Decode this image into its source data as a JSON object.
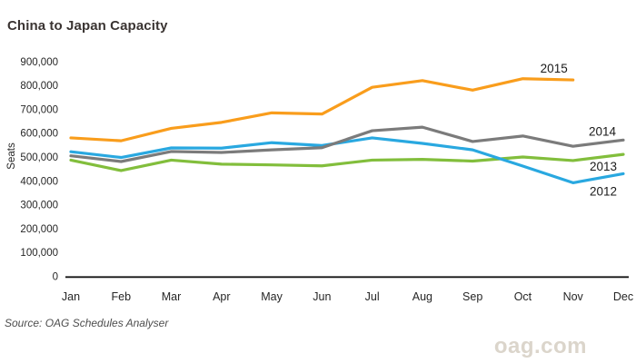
{
  "page": {
    "title": "China to Japan Capacity",
    "source_note": "Source: OAG Schedules Analyser",
    "watermark": "oag.com"
  },
  "colors": {
    "title_text": "#3A3432",
    "axis_text": "#262626",
    "axis_line": "#141414",
    "series_label_text": "#1A1A1A",
    "source_text": "#4D4D4D",
    "watermark_text": "#DBD5CB",
    "background": "#FFFFFF"
  },
  "chart_data": {
    "type": "line",
    "title": "China to Japan Capacity",
    "xlabel": "",
    "ylabel": "Seats",
    "categories": [
      "Jan",
      "Feb",
      "Mar",
      "Apr",
      "May",
      "Jun",
      "Jul",
      "Aug",
      "Sep",
      "Oct",
      "Nov",
      "Dec"
    ],
    "ylim": [
      0,
      900000
    ],
    "ytick_step": 100000,
    "grid": false,
    "legend_position": "end-of-line-labels",
    "series": [
      {
        "name": "2012",
        "color": "#29A8E0",
        "z": 2,
        "label_offset": {
          "dx": -22,
          "dy": 24
        },
        "values": [
          522000,
          498000,
          538000,
          537000,
          560000,
          548000,
          580000,
          557000,
          530000,
          462000,
          392000,
          430000
        ]
      },
      {
        "name": "2013",
        "color": "#82BE3C",
        "z": 1,
        "label_offset": {
          "dx": -22,
          "dy": 18
        },
        "values": [
          487000,
          443000,
          487000,
          470000,
          467000,
          463000,
          487000,
          490000,
          483000,
          500000,
          485000,
          511000
        ]
      },
      {
        "name": "2014",
        "color": "#7B7B7B",
        "z": 3,
        "label_offset": {
          "dx": -23,
          "dy": -5
        },
        "values": [
          505000,
          481000,
          523000,
          519000,
          530000,
          539000,
          610000,
          625000,
          565000,
          588000,
          545000,
          571000
        ]
      },
      {
        "name": "2015",
        "color": "#F99D1C",
        "z": 4,
        "label_offset": {
          "dx": -21,
          "dy": -8
        },
        "values": [
          580000,
          568000,
          620000,
          645000,
          685000,
          680000,
          792000,
          820000,
          780000,
          828000,
          823000,
          null
        ]
      }
    ]
  }
}
